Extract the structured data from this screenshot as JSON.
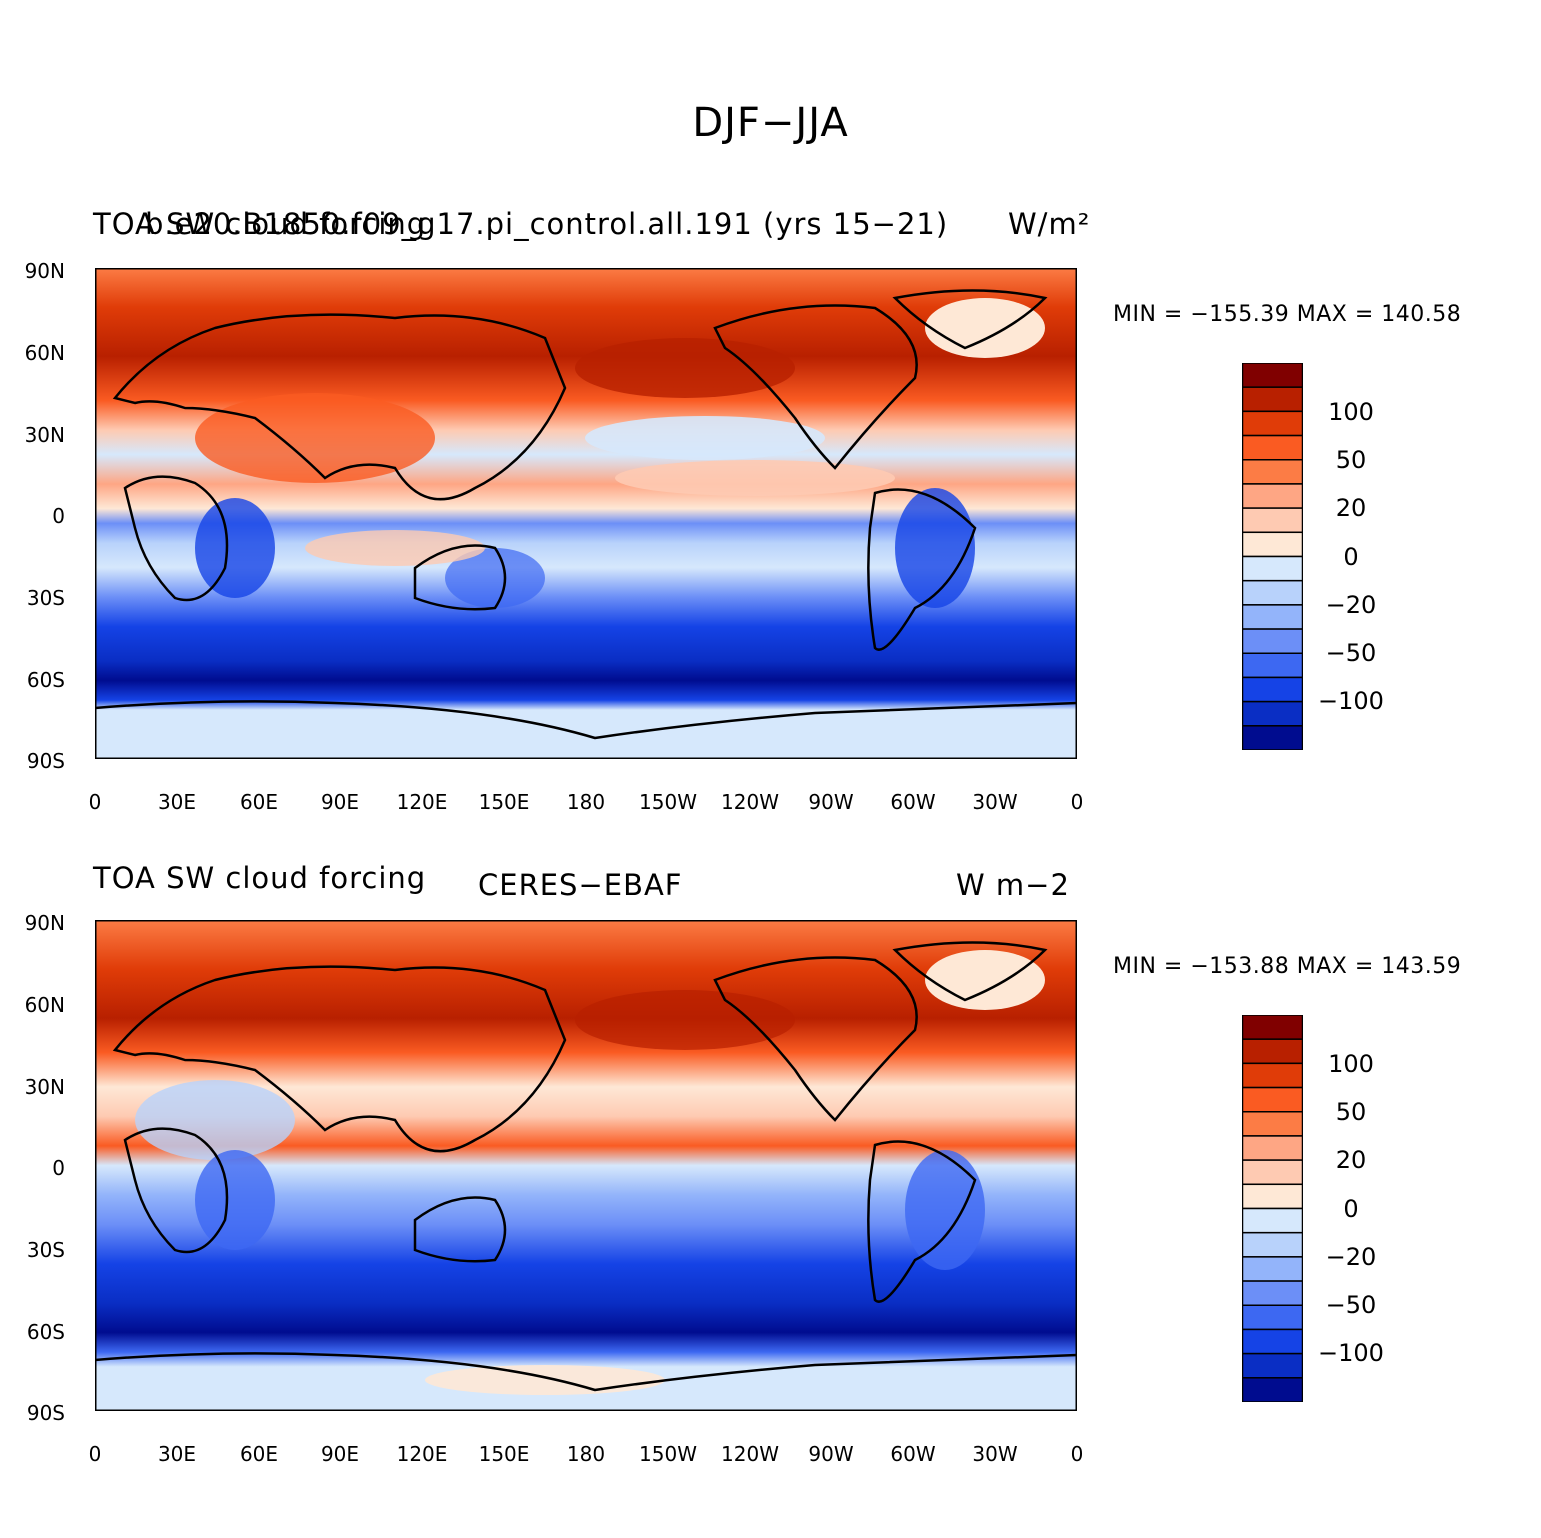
{
  "title": "DJF−JJA",
  "latitude_labels": [
    "90N",
    "60N",
    "30N",
    "0",
    "30S",
    "60S",
    "90S"
  ],
  "longitude_labels": [
    "0",
    "30E",
    "60E",
    "90E",
    "120E",
    "150E",
    "180",
    "150W",
    "120W",
    "90W",
    "60W",
    "30W",
    "0"
  ],
  "colorbar_labels": [
    "100",
    "50",
    "20",
    "0",
    "−20",
    "−50",
    "−100"
  ],
  "colorbar_colors": [
    "#800000",
    "#b82000",
    "#e03c08",
    "#fa5b22",
    "#fc7c45",
    "#fea684",
    "#fecab2",
    "#fee8d6",
    "#d6e8fc",
    "#b8d2fb",
    "#93b4fa",
    "#6c8ff7",
    "#3d68f2",
    "#1543e6",
    "#0a2ec4",
    "#000c8f"
  ],
  "panels": [
    {
      "id": "top",
      "left_title": "TOA SW cloud forcing",
      "center_title": "b.e20.B1850.f09_g17.pi_control.all.191 (yrs 15−21)",
      "right_title": "W/m²",
      "min_max": "MIN = −155.39  MAX = 140.58"
    },
    {
      "id": "bottom",
      "left_title": "TOA SW cloud forcing",
      "center_title": "CERES−EBAF",
      "right_title": "W m−2",
      "min_max": "MIN = −153.88  MAX = 143.59"
    }
  ]
}
